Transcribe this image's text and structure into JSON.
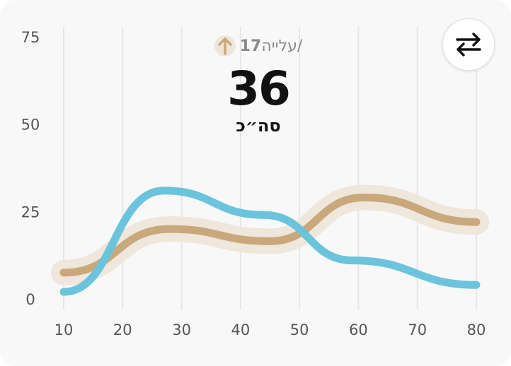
{
  "header": {
    "change_value": "17",
    "change_label": "/עלייה",
    "total_value": "36",
    "total_label": "סה״כ"
  },
  "icons": {
    "trend": "arrow-up-icon",
    "swap": "swap-arrows-icon"
  },
  "colors": {
    "card_background": "#f8f8f8",
    "series_brown": "#c9a87c",
    "series_brown_halo": "#efe6dc",
    "series_blue": "#6bc4dc",
    "grid": "#e6e6e6",
    "trend_badge": "#efe6da"
  },
  "chart_data": {
    "type": "line",
    "smooth": true,
    "grid": {
      "vertical": true,
      "horizontal": false
    },
    "xlim": [
      10,
      80
    ],
    "ylim": [
      0,
      75
    ],
    "x_ticks": [
      10,
      20,
      30,
      40,
      50,
      60,
      70,
      80
    ],
    "y_ticks": [
      0,
      25,
      50,
      75
    ],
    "series": [
      {
        "color": "#c9a87c",
        "highlighted": true,
        "points": [
          [
            10,
            7.5
          ],
          [
            28,
            20
          ],
          [
            45,
            16.5
          ],
          [
            61,
            29
          ],
          [
            80,
            22
          ]
        ]
      },
      {
        "color": "#6bc4dc",
        "highlighted": false,
        "points": [
          [
            10,
            2
          ],
          [
            27,
            31
          ],
          [
            44,
            24
          ],
          [
            59,
            11
          ],
          [
            80,
            4
          ]
        ]
      }
    ]
  }
}
